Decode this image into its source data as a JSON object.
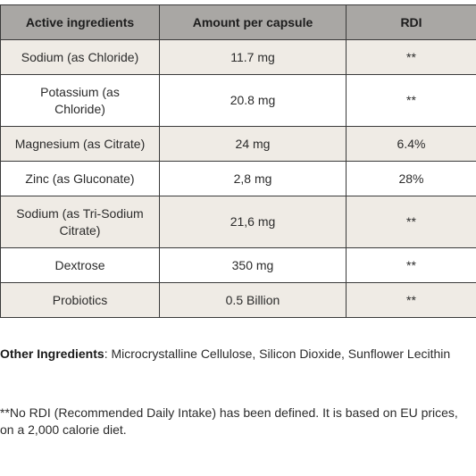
{
  "table": {
    "headers": [
      "Active ingredients",
      "Amount per capsule",
      "RDI"
    ],
    "rows": [
      {
        "ingredient": "Sodium (as Chloride)",
        "amount": "11.7 mg",
        "rdi": "**"
      },
      {
        "ingredient": "Potassium (as Chloride)",
        "amount": "20.8 mg",
        "rdi": "**"
      },
      {
        "ingredient": "Magnesium (as Citrate)",
        "amount": "24 mg",
        "rdi": "6.4%"
      },
      {
        "ingredient": "Zinc (as Gluconate)",
        "amount": "2,8 mg",
        "rdi": "28%"
      },
      {
        "ingredient": "Sodium (as Tri-Sodium Citrate)",
        "amount": "21,6 mg",
        "rdi": "**"
      },
      {
        "ingredient": "Dextrose",
        "amount": "350 mg",
        "rdi": "**"
      },
      {
        "ingredient": "Probiotics",
        "amount": "0.5 Billion",
        "rdi": "**"
      }
    ]
  },
  "other_ingredients": {
    "label": "Other Ingredients",
    "text": ": Microcrystalline Cellulose, Silicon Dioxide, Sunflower Lecithin"
  },
  "rdi_note": "**No RDI (Recommended Daily Intake) has been defined. It is based on EU prices, on a 2,000 calorie diet.",
  "colors": {
    "header_bg": "#a9a7a4",
    "shaded_row": "#efebe5",
    "border": "#3a3a3a"
  }
}
